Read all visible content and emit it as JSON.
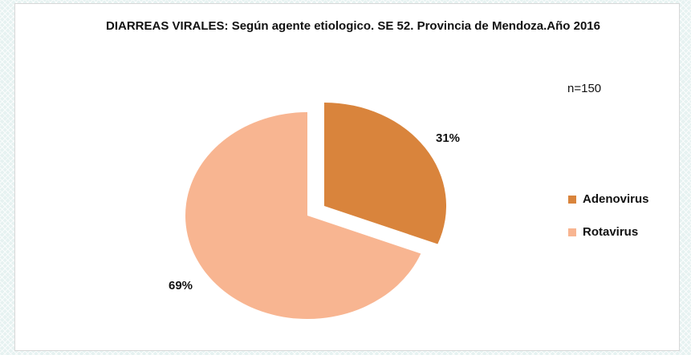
{
  "chart_data": {
    "type": "pie",
    "title": "DIARREAS VIRALES: Según agente etiologico. SE 52. Provincia de Mendoza.Año 2016",
    "annotation": "n=150",
    "categories": [
      "Adenovirus",
      "Rotavirus"
    ],
    "values": [
      31,
      69
    ],
    "value_labels": [
      "31%",
      "69%"
    ],
    "colors": [
      "#d9843c",
      "#f8b591"
    ],
    "legend": "right"
  }
}
